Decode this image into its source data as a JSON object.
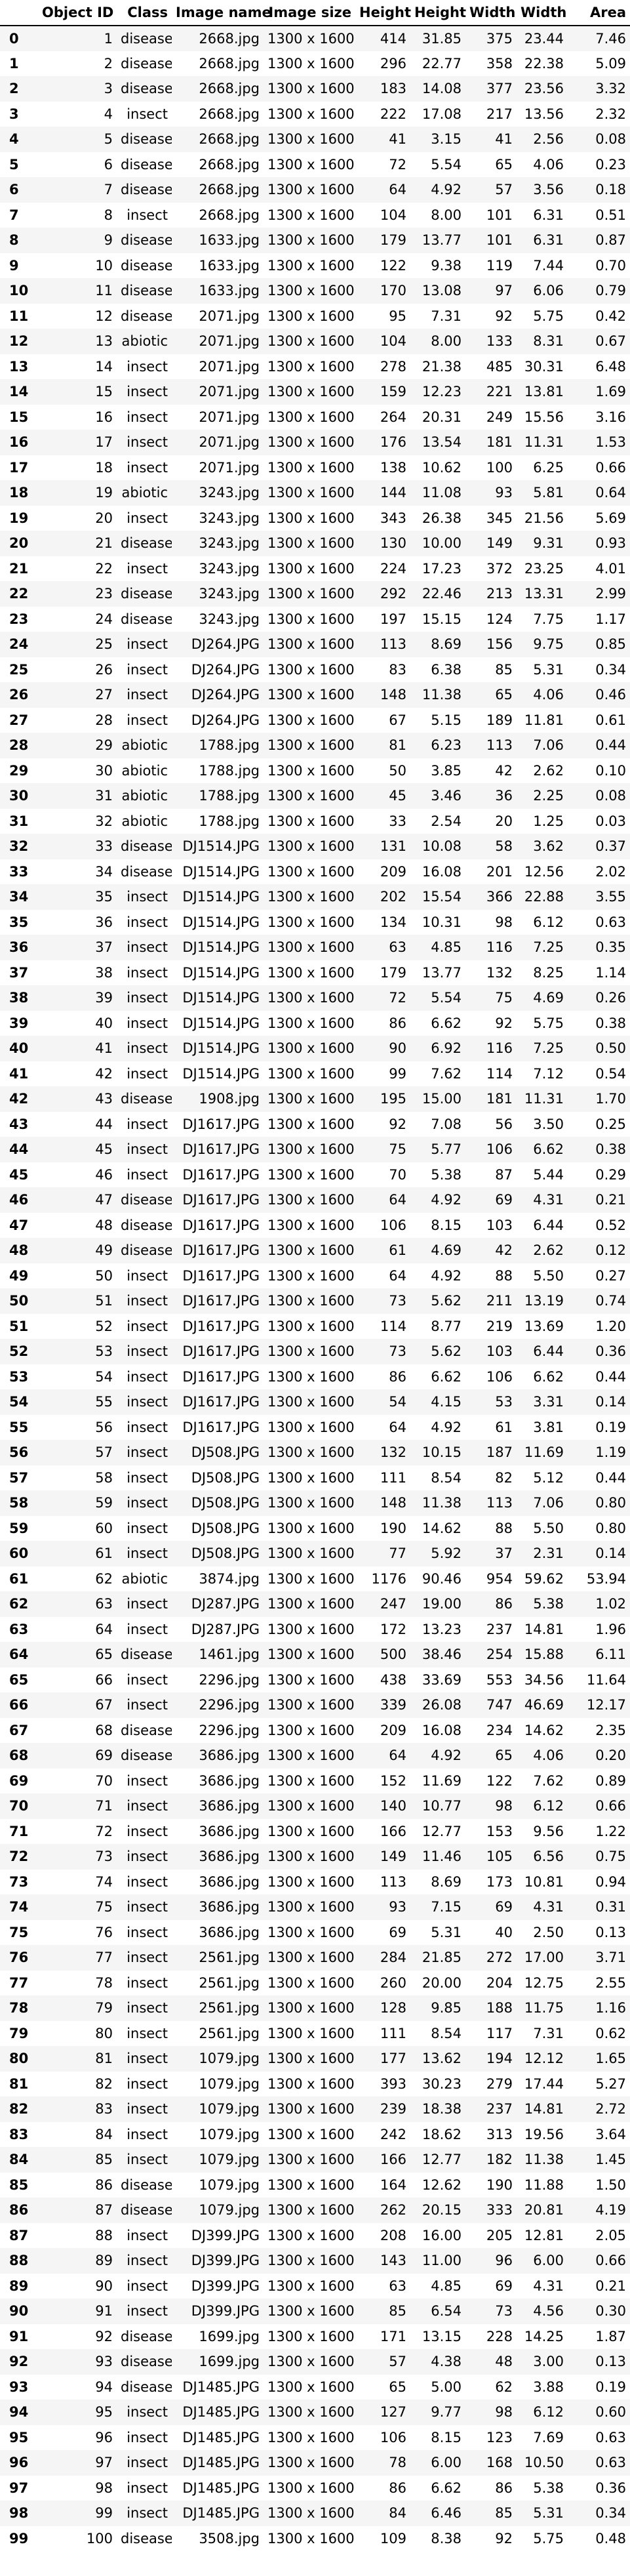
{
  "columns": [
    "",
    "Object ID",
    "Class",
    "Image name",
    "Image size",
    "Height",
    "Height",
    "Width",
    "Width",
    "Area"
  ],
  "rows": [
    [
      "0",
      "1",
      "disease",
      "2668.jpg",
      "1300 x 1600",
      "414",
      "31.85",
      "375",
      "23.44",
      "7.46"
    ],
    [
      "1",
      "2",
      "disease",
      "2668.jpg",
      "1300 x 1600",
      "296",
      "22.77",
      "358",
      "22.38",
      "5.09"
    ],
    [
      "2",
      "3",
      "disease",
      "2668.jpg",
      "1300 x 1600",
      "183",
      "14.08",
      "377",
      "23.56",
      "3.32"
    ],
    [
      "3",
      "4",
      "insect",
      "2668.jpg",
      "1300 x 1600",
      "222",
      "17.08",
      "217",
      "13.56",
      "2.32"
    ],
    [
      "4",
      "5",
      "disease",
      "2668.jpg",
      "1300 x 1600",
      "41",
      "3.15",
      "41",
      "2.56",
      "0.08"
    ],
    [
      "5",
      "6",
      "disease",
      "2668.jpg",
      "1300 x 1600",
      "72",
      "5.54",
      "65",
      "4.06",
      "0.23"
    ],
    [
      "6",
      "7",
      "disease",
      "2668.jpg",
      "1300 x 1600",
      "64",
      "4.92",
      "57",
      "3.56",
      "0.18"
    ],
    [
      "7",
      "8",
      "insect",
      "2668.jpg",
      "1300 x 1600",
      "104",
      "8.00",
      "101",
      "6.31",
      "0.51"
    ],
    [
      "8",
      "9",
      "disease",
      "1633.jpg",
      "1300 x 1600",
      "179",
      "13.77",
      "101",
      "6.31",
      "0.87"
    ],
    [
      "9",
      "10",
      "disease",
      "1633.jpg",
      "1300 x 1600",
      "122",
      "9.38",
      "119",
      "7.44",
      "0.70"
    ],
    [
      "10",
      "11",
      "disease",
      "1633.jpg",
      "1300 x 1600",
      "170",
      "13.08",
      "97",
      "6.06",
      "0.79"
    ],
    [
      "11",
      "12",
      "disease",
      "2071.jpg",
      "1300 x 1600",
      "95",
      "7.31",
      "92",
      "5.75",
      "0.42"
    ],
    [
      "12",
      "13",
      "abiotic",
      "2071.jpg",
      "1300 x 1600",
      "104",
      "8.00",
      "133",
      "8.31",
      "0.67"
    ],
    [
      "13",
      "14",
      "insect",
      "2071.jpg",
      "1300 x 1600",
      "278",
      "21.38",
      "485",
      "30.31",
      "6.48"
    ],
    [
      "14",
      "15",
      "insect",
      "2071.jpg",
      "1300 x 1600",
      "159",
      "12.23",
      "221",
      "13.81",
      "1.69"
    ],
    [
      "15",
      "16",
      "insect",
      "2071.jpg",
      "1300 x 1600",
      "264",
      "20.31",
      "249",
      "15.56",
      "3.16"
    ],
    [
      "16",
      "17",
      "insect",
      "2071.jpg",
      "1300 x 1600",
      "176",
      "13.54",
      "181",
      "11.31",
      "1.53"
    ],
    [
      "17",
      "18",
      "insect",
      "2071.jpg",
      "1300 x 1600",
      "138",
      "10.62",
      "100",
      "6.25",
      "0.66"
    ],
    [
      "18",
      "19",
      "abiotic",
      "3243.jpg",
      "1300 x 1600",
      "144",
      "11.08",
      "93",
      "5.81",
      "0.64"
    ],
    [
      "19",
      "20",
      "insect",
      "3243.jpg",
      "1300 x 1600",
      "343",
      "26.38",
      "345",
      "21.56",
      "5.69"
    ],
    [
      "20",
      "21",
      "disease",
      "3243.jpg",
      "1300 x 1600",
      "130",
      "10.00",
      "149",
      "9.31",
      "0.93"
    ],
    [
      "21",
      "22",
      "insect",
      "3243.jpg",
      "1300 x 1600",
      "224",
      "17.23",
      "372",
      "23.25",
      "4.01"
    ],
    [
      "22",
      "23",
      "disease",
      "3243.jpg",
      "1300 x 1600",
      "292",
      "22.46",
      "213",
      "13.31",
      "2.99"
    ],
    [
      "23",
      "24",
      "disease",
      "3243.jpg",
      "1300 x 1600",
      "197",
      "15.15",
      "124",
      "7.75",
      "1.17"
    ],
    [
      "24",
      "25",
      "insect",
      "DJ264.JPG",
      "1300 x 1600",
      "113",
      "8.69",
      "156",
      "9.75",
      "0.85"
    ],
    [
      "25",
      "26",
      "insect",
      "DJ264.JPG",
      "1300 x 1600",
      "83",
      "6.38",
      "85",
      "5.31",
      "0.34"
    ],
    [
      "26",
      "27",
      "insect",
      "DJ264.JPG",
      "1300 x 1600",
      "148",
      "11.38",
      "65",
      "4.06",
      "0.46"
    ],
    [
      "27",
      "28",
      "insect",
      "DJ264.JPG",
      "1300 x 1600",
      "67",
      "5.15",
      "189",
      "11.81",
      "0.61"
    ],
    [
      "28",
      "29",
      "abiotic",
      "1788.jpg",
      "1300 x 1600",
      "81",
      "6.23",
      "113",
      "7.06",
      "0.44"
    ],
    [
      "29",
      "30",
      "abiotic",
      "1788.jpg",
      "1300 x 1600",
      "50",
      "3.85",
      "42",
      "2.62",
      "0.10"
    ],
    [
      "30",
      "31",
      "abiotic",
      "1788.jpg",
      "1300 x 1600",
      "45",
      "3.46",
      "36",
      "2.25",
      "0.08"
    ],
    [
      "31",
      "32",
      "abiotic",
      "1788.jpg",
      "1300 x 1600",
      "33",
      "2.54",
      "20",
      "1.25",
      "0.03"
    ],
    [
      "32",
      "33",
      "disease",
      "DJ1514.JPG",
      "1300 x 1600",
      "131",
      "10.08",
      "58",
      "3.62",
      "0.37"
    ],
    [
      "33",
      "34",
      "disease",
      "DJ1514.JPG",
      "1300 x 1600",
      "209",
      "16.08",
      "201",
      "12.56",
      "2.02"
    ],
    [
      "34",
      "35",
      "insect",
      "DJ1514.JPG",
      "1300 x 1600",
      "202",
      "15.54",
      "366",
      "22.88",
      "3.55"
    ],
    [
      "35",
      "36",
      "insect",
      "DJ1514.JPG",
      "1300 x 1600",
      "134",
      "10.31",
      "98",
      "6.12",
      "0.63"
    ],
    [
      "36",
      "37",
      "insect",
      "DJ1514.JPG",
      "1300 x 1600",
      "63",
      "4.85",
      "116",
      "7.25",
      "0.35"
    ],
    [
      "37",
      "38",
      "insect",
      "DJ1514.JPG",
      "1300 x 1600",
      "179",
      "13.77",
      "132",
      "8.25",
      "1.14"
    ],
    [
      "38",
      "39",
      "insect",
      "DJ1514.JPG",
      "1300 x 1600",
      "72",
      "5.54",
      "75",
      "4.69",
      "0.26"
    ],
    [
      "39",
      "40",
      "insect",
      "DJ1514.JPG",
      "1300 x 1600",
      "86",
      "6.62",
      "92",
      "5.75",
      "0.38"
    ],
    [
      "40",
      "41",
      "insect",
      "DJ1514.JPG",
      "1300 x 1600",
      "90",
      "6.92",
      "116",
      "7.25",
      "0.50"
    ],
    [
      "41",
      "42",
      "insect",
      "DJ1514.JPG",
      "1300 x 1600",
      "99",
      "7.62",
      "114",
      "7.12",
      "0.54"
    ],
    [
      "42",
      "43",
      "disease",
      "1908.jpg",
      "1300 x 1600",
      "195",
      "15.00",
      "181",
      "11.31",
      "1.70"
    ],
    [
      "43",
      "44",
      "insect",
      "DJ1617.JPG",
      "1300 x 1600",
      "92",
      "7.08",
      "56",
      "3.50",
      "0.25"
    ],
    [
      "44",
      "45",
      "insect",
      "DJ1617.JPG",
      "1300 x 1600",
      "75",
      "5.77",
      "106",
      "6.62",
      "0.38"
    ],
    [
      "45",
      "46",
      "insect",
      "DJ1617.JPG",
      "1300 x 1600",
      "70",
      "5.38",
      "87",
      "5.44",
      "0.29"
    ],
    [
      "46",
      "47",
      "disease",
      "DJ1617.JPG",
      "1300 x 1600",
      "64",
      "4.92",
      "69",
      "4.31",
      "0.21"
    ],
    [
      "47",
      "48",
      "disease",
      "DJ1617.JPG",
      "1300 x 1600",
      "106",
      "8.15",
      "103",
      "6.44",
      "0.52"
    ],
    [
      "48",
      "49",
      "disease",
      "DJ1617.JPG",
      "1300 x 1600",
      "61",
      "4.69",
      "42",
      "2.62",
      "0.12"
    ],
    [
      "49",
      "50",
      "insect",
      "DJ1617.JPG",
      "1300 x 1600",
      "64",
      "4.92",
      "88",
      "5.50",
      "0.27"
    ],
    [
      "50",
      "51",
      "insect",
      "DJ1617.JPG",
      "1300 x 1600",
      "73",
      "5.62",
      "211",
      "13.19",
      "0.74"
    ],
    [
      "51",
      "52",
      "insect",
      "DJ1617.JPG",
      "1300 x 1600",
      "114",
      "8.77",
      "219",
      "13.69",
      "1.20"
    ],
    [
      "52",
      "53",
      "insect",
      "DJ1617.JPG",
      "1300 x 1600",
      "73",
      "5.62",
      "103",
      "6.44",
      "0.36"
    ],
    [
      "53",
      "54",
      "insect",
      "DJ1617.JPG",
      "1300 x 1600",
      "86",
      "6.62",
      "106",
      "6.62",
      "0.44"
    ],
    [
      "54",
      "55",
      "insect",
      "DJ1617.JPG",
      "1300 x 1600",
      "54",
      "4.15",
      "53",
      "3.31",
      "0.14"
    ],
    [
      "55",
      "56",
      "insect",
      "DJ1617.JPG",
      "1300 x 1600",
      "64",
      "4.92",
      "61",
      "3.81",
      "0.19"
    ],
    [
      "56",
      "57",
      "insect",
      "DJ508.JPG",
      "1300 x 1600",
      "132",
      "10.15",
      "187",
      "11.69",
      "1.19"
    ],
    [
      "57",
      "58",
      "insect",
      "DJ508.JPG",
      "1300 x 1600",
      "111",
      "8.54",
      "82",
      "5.12",
      "0.44"
    ],
    [
      "58",
      "59",
      "insect",
      "DJ508.JPG",
      "1300 x 1600",
      "148",
      "11.38",
      "113",
      "7.06",
      "0.80"
    ],
    [
      "59",
      "60",
      "insect",
      "DJ508.JPG",
      "1300 x 1600",
      "190",
      "14.62",
      "88",
      "5.50",
      "0.80"
    ],
    [
      "60",
      "61",
      "insect",
      "DJ508.JPG",
      "1300 x 1600",
      "77",
      "5.92",
      "37",
      "2.31",
      "0.14"
    ],
    [
      "61",
      "62",
      "abiotic",
      "3874.jpg",
      "1300 x 1600",
      "1176",
      "90.46",
      "954",
      "59.62",
      "53.94"
    ],
    [
      "62",
      "63",
      "insect",
      "DJ287.JPG",
      "1300 x 1600",
      "247",
      "19.00",
      "86",
      "5.38",
      "1.02"
    ],
    [
      "63",
      "64",
      "insect",
      "DJ287.JPG",
      "1300 x 1600",
      "172",
      "13.23",
      "237",
      "14.81",
      "1.96"
    ],
    [
      "64",
      "65",
      "disease",
      "1461.jpg",
      "1300 x 1600",
      "500",
      "38.46",
      "254",
      "15.88",
      "6.11"
    ],
    [
      "65",
      "66",
      "insect",
      "2296.jpg",
      "1300 x 1600",
      "438",
      "33.69",
      "553",
      "34.56",
      "11.64"
    ],
    [
      "66",
      "67",
      "insect",
      "2296.jpg",
      "1300 x 1600",
      "339",
      "26.08",
      "747",
      "46.69",
      "12.17"
    ],
    [
      "67",
      "68",
      "disease",
      "2296.jpg",
      "1300 x 1600",
      "209",
      "16.08",
      "234",
      "14.62",
      "2.35"
    ],
    [
      "68",
      "69",
      "disease",
      "3686.jpg",
      "1300 x 1600",
      "64",
      "4.92",
      "65",
      "4.06",
      "0.20"
    ],
    [
      "69",
      "70",
      "insect",
      "3686.jpg",
      "1300 x 1600",
      "152",
      "11.69",
      "122",
      "7.62",
      "0.89"
    ],
    [
      "70",
      "71",
      "insect",
      "3686.jpg",
      "1300 x 1600",
      "140",
      "10.77",
      "98",
      "6.12",
      "0.66"
    ],
    [
      "71",
      "72",
      "insect",
      "3686.jpg",
      "1300 x 1600",
      "166",
      "12.77",
      "153",
      "9.56",
      "1.22"
    ],
    [
      "72",
      "73",
      "insect",
      "3686.jpg",
      "1300 x 1600",
      "149",
      "11.46",
      "105",
      "6.56",
      "0.75"
    ],
    [
      "73",
      "74",
      "insect",
      "3686.jpg",
      "1300 x 1600",
      "113",
      "8.69",
      "173",
      "10.81",
      "0.94"
    ],
    [
      "74",
      "75",
      "insect",
      "3686.jpg",
      "1300 x 1600",
      "93",
      "7.15",
      "69",
      "4.31",
      "0.31"
    ],
    [
      "75",
      "76",
      "insect",
      "3686.jpg",
      "1300 x 1600",
      "69",
      "5.31",
      "40",
      "2.50",
      "0.13"
    ],
    [
      "76",
      "77",
      "insect",
      "2561.jpg",
      "1300 x 1600",
      "284",
      "21.85",
      "272",
      "17.00",
      "3.71"
    ],
    [
      "77",
      "78",
      "insect",
      "2561.jpg",
      "1300 x 1600",
      "260",
      "20.00",
      "204",
      "12.75",
      "2.55"
    ],
    [
      "78",
      "79",
      "insect",
      "2561.jpg",
      "1300 x 1600",
      "128",
      "9.85",
      "188",
      "11.75",
      "1.16"
    ],
    [
      "79",
      "80",
      "insect",
      "2561.jpg",
      "1300 x 1600",
      "111",
      "8.54",
      "117",
      "7.31",
      "0.62"
    ],
    [
      "80",
      "81",
      "insect",
      "1079.jpg",
      "1300 x 1600",
      "177",
      "13.62",
      "194",
      "12.12",
      "1.65"
    ],
    [
      "81",
      "82",
      "insect",
      "1079.jpg",
      "1300 x 1600",
      "393",
      "30.23",
      "279",
      "17.44",
      "5.27"
    ],
    [
      "82",
      "83",
      "insect",
      "1079.jpg",
      "1300 x 1600",
      "239",
      "18.38",
      "237",
      "14.81",
      "2.72"
    ],
    [
      "83",
      "84",
      "insect",
      "1079.jpg",
      "1300 x 1600",
      "242",
      "18.62",
      "313",
      "19.56",
      "3.64"
    ],
    [
      "84",
      "85",
      "insect",
      "1079.jpg",
      "1300 x 1600",
      "166",
      "12.77",
      "182",
      "11.38",
      "1.45"
    ],
    [
      "85",
      "86",
      "disease",
      "1079.jpg",
      "1300 x 1600",
      "164",
      "12.62",
      "190",
      "11.88",
      "1.50"
    ],
    [
      "86",
      "87",
      "disease",
      "1079.jpg",
      "1300 x 1600",
      "262",
      "20.15",
      "333",
      "20.81",
      "4.19"
    ],
    [
      "87",
      "88",
      "insect",
      "DJ399.JPG",
      "1300 x 1600",
      "208",
      "16.00",
      "205",
      "12.81",
      "2.05"
    ],
    [
      "88",
      "89",
      "insect",
      "DJ399.JPG",
      "1300 x 1600",
      "143",
      "11.00",
      "96",
      "6.00",
      "0.66"
    ],
    [
      "89",
      "90",
      "insect",
      "DJ399.JPG",
      "1300 x 1600",
      "63",
      "4.85",
      "69",
      "4.31",
      "0.21"
    ],
    [
      "90",
      "91",
      "insect",
      "DJ399.JPG",
      "1300 x 1600",
      "85",
      "6.54",
      "73",
      "4.56",
      "0.30"
    ],
    [
      "91",
      "92",
      "disease",
      "1699.jpg",
      "1300 x 1600",
      "171",
      "13.15",
      "228",
      "14.25",
      "1.87"
    ],
    [
      "92",
      "93",
      "disease",
      "1699.jpg",
      "1300 x 1600",
      "57",
      "4.38",
      "48",
      "3.00",
      "0.13"
    ],
    [
      "93",
      "94",
      "disease",
      "DJ1485.JPG",
      "1300 x 1600",
      "65",
      "5.00",
      "62",
      "3.88",
      "0.19"
    ],
    [
      "94",
      "95",
      "insect",
      "DJ1485.JPG",
      "1300 x 1600",
      "127",
      "9.77",
      "98",
      "6.12",
      "0.60"
    ],
    [
      "95",
      "96",
      "insect",
      "DJ1485.JPG",
      "1300 x 1600",
      "106",
      "8.15",
      "123",
      "7.69",
      "0.63"
    ],
    [
      "96",
      "97",
      "insect",
      "DJ1485.JPG",
      "1300 x 1600",
      "78",
      "6.00",
      "168",
      "10.50",
      "0.63"
    ],
    [
      "97",
      "98",
      "insect",
      "DJ1485.JPG",
      "1300 x 1600",
      "86",
      "6.62",
      "86",
      "5.38",
      "0.36"
    ],
    [
      "98",
      "99",
      "insect",
      "DJ1485.JPG",
      "1300 x 1600",
      "84",
      "6.46",
      "85",
      "5.31",
      "0.34"
    ],
    [
      "99",
      "100",
      "disease",
      "3508.jpg",
      "1300 x 1600",
      "109",
      "8.38",
      "92",
      "5.75",
      "0.48"
    ]
  ]
}
